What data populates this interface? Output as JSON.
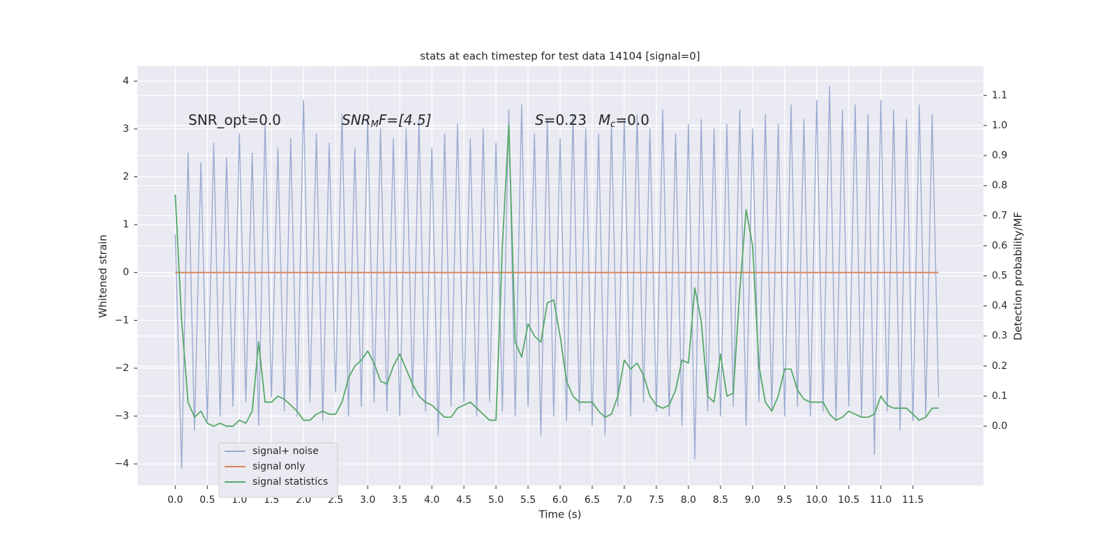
{
  "chart_data": {
    "type": "line",
    "title": "stats at each timestep for test data 14104 [signal=0]",
    "x_label": "Time (s)",
    "y_label": "Whitened strain",
    "y2_label": "Detection probability/MF",
    "annotations": [
      {
        "text": "SNR_opt=0.0"
      },
      {
        "main": "SNR",
        "sub": "M",
        "rest": "F=[4.5]"
      },
      {
        "main": "S",
        "rest": "=0.23"
      },
      {
        "main": "M",
        "sub": "c",
        "rest": "=0.0"
      }
    ],
    "grid": true,
    "background": "#eaeaf2",
    "legend": "lower left",
    "xlim": [
      -0.59,
      12.6
    ],
    "ylim": [
      -4.45,
      4.31
    ],
    "y2lim": [
      -0.197,
      1.197
    ],
    "xticks": [
      {
        "value": 0,
        "label": "0.0"
      },
      0.5,
      {
        "value": 1,
        "label": "1.0"
      },
      1.5,
      {
        "value": 2,
        "label": "2.0"
      },
      2.5,
      {
        "value": 3,
        "label": "3.0"
      },
      3.5,
      {
        "value": 4,
        "label": "4.0"
      },
      4.5,
      {
        "value": 5,
        "label": "5.0"
      },
      5.5,
      {
        "value": 6,
        "label": "6.0"
      },
      6.5,
      {
        "value": 7,
        "label": "7.0"
      },
      7.5,
      {
        "value": 8,
        "label": "8.0"
      },
      8.5,
      {
        "value": 9,
        "label": "9.0"
      },
      9.5,
      {
        "value": 10,
        "label": "10.0"
      },
      10.5,
      {
        "value": 11,
        "label": "11.0"
      },
      11.5
    ],
    "yticks": [
      {
        "value": -4,
        "label": "−4"
      },
      {
        "value": -3,
        "label": "−3"
      },
      {
        "value": -2,
        "label": "−2"
      },
      {
        "value": -1,
        "label": "−1"
      },
      0,
      1,
      2,
      3,
      4
    ],
    "y2ticks": [
      {
        "value": 0,
        "label": "0.0"
      },
      0.1,
      0.2,
      0.3,
      0.4,
      0.5,
      0.6,
      0.7,
      0.8,
      0.9,
      {
        "value": 1,
        "label": "1.0"
      },
      1.1
    ],
    "x": [
      0,
      0.1,
      0.2,
      0.3,
      0.4,
      0.5,
      0.6,
      0.7,
      0.8,
      0.9,
      1,
      1.1,
      1.2,
      1.3,
      1.4,
      1.5,
      1.6,
      1.7,
      1.8,
      1.9,
      2,
      2.1,
      2.2,
      2.3,
      2.4,
      2.5,
      2.6,
      2.7,
      2.8,
      2.9,
      3,
      3.1,
      3.2,
      3.3,
      3.4,
      3.5,
      3.6,
      3.7,
      3.8,
      3.9,
      4,
      4.1,
      4.2,
      4.3,
      4.4,
      4.5,
      4.6,
      4.7,
      4.8,
      4.9,
      5,
      5.1,
      5.2,
      5.3,
      5.4,
      5.5,
      5.6,
      5.7,
      5.8,
      5.9,
      6,
      6.1,
      6.2,
      6.3,
      6.4,
      6.5,
      6.6,
      6.7,
      6.8,
      6.9,
      7,
      7.1,
      7.2,
      7.3,
      7.4,
      7.5,
      7.6,
      7.7,
      7.8,
      7.9,
      8,
      8.1,
      8.2,
      8.3,
      8.4,
      8.5,
      8.6,
      8.7,
      8.8,
      8.9,
      9,
      9.1,
      9.2,
      9.3,
      9.4,
      9.5,
      9.6,
      9.7,
      9.8,
      9.9,
      10,
      10.1,
      10.2,
      10.3,
      10.4,
      10.5,
      10.6,
      10.7,
      10.8,
      10.9,
      11,
      11.1,
      11.2,
      11.3,
      11.4,
      11.5,
      11.6,
      11.7,
      11.8,
      11.9
    ],
    "series": [
      {
        "name": "signal+ noise",
        "color": "#9aabd0",
        "values": [
          0.8,
          -4.1,
          2.5,
          -3.3,
          2.3,
          -3.1,
          2.7,
          -3.0,
          2.4,
          -2.8,
          2.9,
          -2.7,
          2.5,
          -3.2,
          3.1,
          -2.6,
          2.6,
          -2.9,
          2.8,
          -3.0,
          3.6,
          -2.7,
          2.9,
          -3.1,
          2.7,
          -2.5,
          3.3,
          -3.0,
          2.6,
          -2.8,
          3.2,
          -2.7,
          3.0,
          -2.9,
          2.8,
          -3.0,
          3.0,
          -2.6,
          3.2,
          -2.9,
          2.6,
          -3.4,
          2.9,
          -2.8,
          3.1,
          -2.7,
          2.8,
          -3.0,
          3.0,
          -2.7,
          2.7,
          -2.9,
          3.4,
          -3.0,
          3.5,
          -2.8,
          2.9,
          -3.4,
          3.2,
          -3.0,
          2.8,
          -3.1,
          3.3,
          -2.9,
          3.0,
          -3.2,
          2.9,
          -3.4,
          3.1,
          -2.8,
          3.2,
          -3.0,
          3.3,
          -2.7,
          3.0,
          -2.9,
          3.4,
          -3.0,
          2.9,
          -3.2,
          3.1,
          -3.9,
          3.2,
          -2.9,
          3.0,
          -3.0,
          3.1,
          -2.8,
          3.4,
          -3.2,
          3.0,
          -2.7,
          3.3,
          -2.9,
          3.1,
          -3.0,
          3.5,
          -2.8,
          3.2,
          -3.0,
          3.6,
          -2.9,
          3.9,
          -3.1,
          3.4,
          -2.8,
          3.5,
          -3.0,
          3.3,
          -3.8,
          3.6,
          -2.9,
          3.4,
          -3.3,
          3.2,
          -3.1,
          3.5,
          -3.0,
          3.3,
          -2.6
        ]
      },
      {
        "name": "signal only",
        "color": "#dd8452",
        "values": [
          0,
          0,
          0,
          0,
          0,
          0,
          0,
          0,
          0,
          0,
          0,
          0,
          0,
          0,
          0,
          0,
          0,
          0,
          0,
          0,
          0,
          0,
          0,
          0,
          0,
          0,
          0,
          0,
          0,
          0,
          0,
          0,
          0,
          0,
          0,
          0,
          0,
          0,
          0,
          0,
          0,
          0,
          0,
          0,
          0,
          0,
          0,
          0,
          0,
          0,
          0,
          0,
          0,
          0,
          0,
          0,
          0,
          0,
          0,
          0,
          0,
          0,
          0,
          0,
          0,
          0,
          0,
          0,
          0,
          0,
          0,
          0,
          0,
          0,
          0,
          0,
          0,
          0,
          0,
          0,
          0,
          0,
          0,
          0,
          0,
          0,
          0,
          0,
          0,
          0,
          0,
          0,
          0,
          0,
          0,
          0,
          0,
          0,
          0,
          0,
          0,
          0,
          0,
          0,
          0,
          0,
          0,
          0,
          0,
          0,
          0,
          0,
          0,
          0,
          0,
          0,
          0,
          0,
          0,
          0
        ]
      },
      {
        "name": "signal statistics",
        "color": "#55a868",
        "axis": "y2",
        "values": [
          0.77,
          0.35,
          0.08,
          0.03,
          0.05,
          0.01,
          0.0,
          0.01,
          0.0,
          0.0,
          0.02,
          0.01,
          0.05,
          0.28,
          0.08,
          0.08,
          0.1,
          0.09,
          0.07,
          0.05,
          0.02,
          0.02,
          0.04,
          0.05,
          0.04,
          0.04,
          0.08,
          0.16,
          0.2,
          0.22,
          0.25,
          0.21,
          0.15,
          0.14,
          0.2,
          0.24,
          0.19,
          0.14,
          0.1,
          0.08,
          0.07,
          0.05,
          0.03,
          0.03,
          0.06,
          0.07,
          0.08,
          0.06,
          0.04,
          0.02,
          0.02,
          0.6,
          1.0,
          0.28,
          0.23,
          0.34,
          0.3,
          0.28,
          0.41,
          0.42,
          0.3,
          0.15,
          0.1,
          0.08,
          0.08,
          0.08,
          0.05,
          0.03,
          0.04,
          0.1,
          0.22,
          0.19,
          0.21,
          0.17,
          0.1,
          0.07,
          0.06,
          0.07,
          0.12,
          0.22,
          0.21,
          0.46,
          0.35,
          0.1,
          0.08,
          0.24,
          0.1,
          0.11,
          0.45,
          0.72,
          0.6,
          0.2,
          0.08,
          0.05,
          0.1,
          0.19,
          0.19,
          0.12,
          0.09,
          0.08,
          0.08,
          0.08,
          0.04,
          0.02,
          0.03,
          0.05,
          0.04,
          0.03,
          0.03,
          0.04,
          0.1,
          0.07,
          0.06,
          0.06,
          0.06,
          0.04,
          0.02,
          0.03,
          0.06,
          0.06
        ]
      }
    ]
  }
}
